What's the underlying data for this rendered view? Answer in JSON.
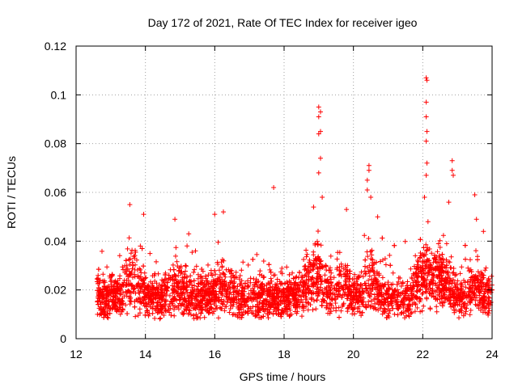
{
  "chart_data": {
    "type": "scatter",
    "title": "Day 172 of 2021, Rate Of TEC Index for receiver igeo",
    "xlabel": "GPS time / hours",
    "ylabel": "ROTI / TECUs",
    "xlim": [
      12,
      24
    ],
    "ylim": [
      0,
      0.12
    ],
    "xticks": [
      12,
      14,
      16,
      18,
      20,
      22,
      24
    ],
    "xtick_labels": [
      "12",
      "14",
      "16",
      "18",
      "20",
      "22",
      "24"
    ],
    "yticks": [
      0,
      0.02,
      0.04,
      0.06,
      0.08,
      0.1,
      0.12
    ],
    "ytick_labels": [
      "0",
      "0.02",
      "0.04",
      "0.06",
      "0.08",
      "0.1",
      "0.12"
    ],
    "grid": true,
    "marker": "+",
    "series": [
      {
        "name": "ROTI",
        "color": "#ff0000",
        "x_range": [
          12.6,
          24.0
        ],
        "typical_range": [
          0.005,
          0.03
        ],
        "peaks": [
          {
            "x": 13.55,
            "y": 0.055
          },
          {
            "x": 13.95,
            "y": 0.051
          },
          {
            "x": 14.85,
            "y": 0.049
          },
          {
            "x": 15.25,
            "y": 0.043
          },
          {
            "x": 16.0,
            "y": 0.051
          },
          {
            "x": 16.25,
            "y": 0.052
          },
          {
            "x": 17.7,
            "y": 0.062
          },
          {
            "x": 18.85,
            "y": 0.054
          },
          {
            "x": 19.0,
            "y": 0.095
          },
          {
            "x": 19.05,
            "y": 0.093
          },
          {
            "x": 19.0,
            "y": 0.091
          },
          {
            "x": 19.05,
            "y": 0.085
          },
          {
            "x": 19.0,
            "y": 0.084
          },
          {
            "x": 19.05,
            "y": 0.074
          },
          {
            "x": 19.0,
            "y": 0.068
          },
          {
            "x": 19.1,
            "y": 0.058
          },
          {
            "x": 19.8,
            "y": 0.053
          },
          {
            "x": 20.45,
            "y": 0.071
          },
          {
            "x": 20.45,
            "y": 0.069
          },
          {
            "x": 20.4,
            "y": 0.065
          },
          {
            "x": 20.4,
            "y": 0.061
          },
          {
            "x": 20.5,
            "y": 0.058
          },
          {
            "x": 20.7,
            "y": 0.05
          },
          {
            "x": 22.1,
            "y": 0.107
          },
          {
            "x": 22.12,
            "y": 0.106
          },
          {
            "x": 22.1,
            "y": 0.097
          },
          {
            "x": 22.1,
            "y": 0.091
          },
          {
            "x": 22.12,
            "y": 0.085
          },
          {
            "x": 22.1,
            "y": 0.081
          },
          {
            "x": 22.12,
            "y": 0.072
          },
          {
            "x": 22.1,
            "y": 0.067
          },
          {
            "x": 22.05,
            "y": 0.058
          },
          {
            "x": 22.15,
            "y": 0.048
          },
          {
            "x": 22.85,
            "y": 0.073
          },
          {
            "x": 22.85,
            "y": 0.069
          },
          {
            "x": 22.88,
            "y": 0.067
          },
          {
            "x": 22.75,
            "y": 0.056
          },
          {
            "x": 23.5,
            "y": 0.059
          },
          {
            "x": 23.55,
            "y": 0.049
          },
          {
            "x": 23.75,
            "y": 0.044
          }
        ]
      }
    ]
  }
}
